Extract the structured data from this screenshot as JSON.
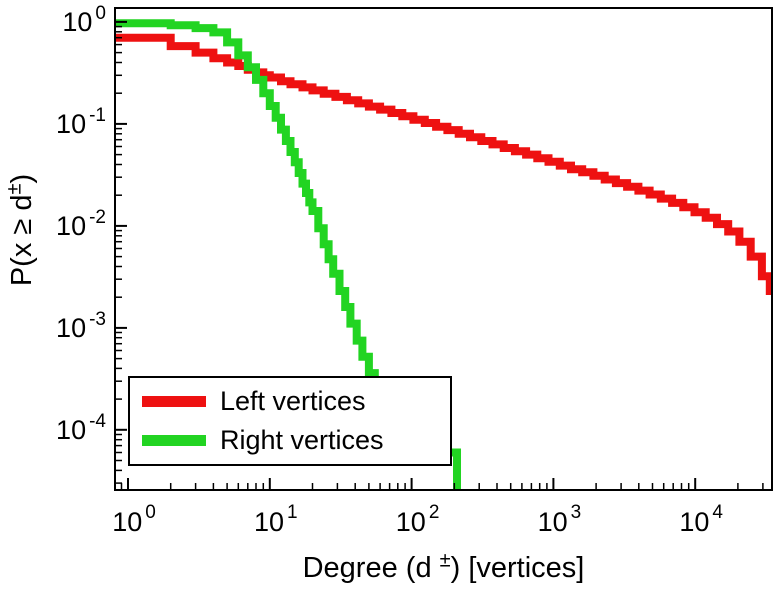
{
  "chart_data": {
    "type": "line",
    "style": "log-log CCDF step plot",
    "title": "",
    "xlabel": "Degree (d±) [vertices]",
    "ylabel": "P(x ≥ d±)",
    "xlabel_parts": {
      "pre": "Degree (d",
      "sup": "±",
      "post": ") [vertices]"
    },
    "ylabel_parts": {
      "pre": "P(x ≥ d",
      "sup": "±",
      "post": ")"
    },
    "x_scale": "log",
    "y_scale": "log",
    "xlim": [
      0.81,
      34800
    ],
    "ylim": [
      2.57e-05,
      1.37
    ],
    "tick_base": 10,
    "x_tick_exponents": [
      0,
      1,
      2,
      3,
      4
    ],
    "y_tick_exponents": [
      0,
      -1,
      -2,
      -3,
      -4
    ],
    "minor_ticks": true,
    "grid": false,
    "legend_position": "bottom-left",
    "series": [
      {
        "name": "Left vertices",
        "color": "#ee1111",
        "line_width": 8,
        "x": [
          0.82,
          2,
          3,
          4,
          5,
          6,
          7,
          8,
          9,
          10,
          12,
          14,
          17,
          20,
          24,
          29,
          35,
          42,
          50,
          60,
          72,
          86,
          103,
          124,
          149,
          179,
          215,
          258,
          310,
          372,
          446,
          535,
          642,
          770,
          924,
          1109,
          1331,
          1597,
          1916,
          2300,
          2760,
          3312,
          3974,
          4769,
          5723,
          6868,
          8241,
          9889,
          11867,
          14240,
          17088,
          20506,
          24607,
          29528,
          33600
        ],
        "y": [
          0.7,
          0.58,
          0.5,
          0.44,
          0.4,
          0.37,
          0.34,
          0.32,
          0.3,
          0.285,
          0.262,
          0.245,
          0.228,
          0.213,
          0.198,
          0.184,
          0.171,
          0.159,
          0.148,
          0.138,
          0.128,
          0.119,
          0.11,
          0.102,
          0.094,
          0.087,
          0.08,
          0.074,
          0.068,
          0.063,
          0.058,
          0.054,
          0.05,
          0.046,
          0.0425,
          0.039,
          0.036,
          0.0335,
          0.031,
          0.0285,
          0.0263,
          0.0242,
          0.0222,
          0.0203,
          0.0185,
          0.0168,
          0.0152,
          0.0136,
          0.012,
          0.0104,
          0.0088,
          0.007,
          0.005,
          0.0032,
          0.0021
        ]
      },
      {
        "name": "Right vertices",
        "color": "#22d422",
        "line_width": 8,
        "x": [
          0.82,
          2,
          3,
          4,
          5,
          6,
          7,
          8,
          9,
          10,
          11,
          12,
          13,
          14,
          15,
          16,
          17,
          18,
          19,
          20,
          22,
          24,
          26,
          28,
          31,
          34,
          37,
          41,
          45,
          50,
          55,
          60,
          65,
          70,
          209
        ],
        "y": [
          0.97,
          0.93,
          0.87,
          0.79,
          0.63,
          0.47,
          0.36,
          0.27,
          0.2,
          0.15,
          0.115,
          0.088,
          0.068,
          0.053,
          0.042,
          0.033,
          0.026,
          0.021,
          0.017,
          0.014,
          0.0095,
          0.0066,
          0.0047,
          0.0034,
          0.0023,
          0.0016,
          0.0011,
          0.00075,
          0.00052,
          0.00036,
          0.00025,
          0.00017,
          0.00011,
          6e-05,
          1e-05
        ]
      }
    ]
  }
}
